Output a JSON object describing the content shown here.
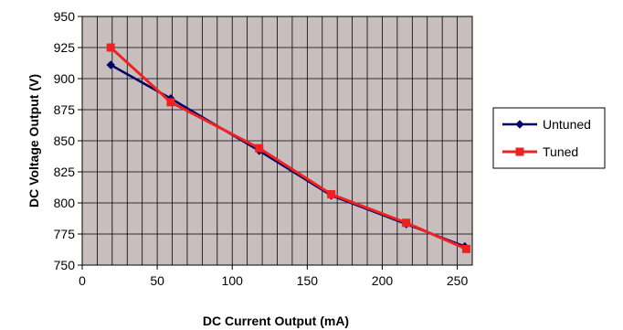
{
  "chart_data": {
    "type": "line",
    "xlabel": "DC Current Output (mA)",
    "ylabel": "DC Voltage Output (V)",
    "xlim": [
      0,
      260
    ],
    "ylim": [
      750,
      950
    ],
    "x_ticks": [
      0,
      50,
      100,
      150,
      200,
      250
    ],
    "y_ticks": [
      750,
      775,
      800,
      825,
      850,
      875,
      900,
      925,
      950
    ],
    "x_minor_step": 10,
    "grid": true,
    "plot_background": "#c8bebe",
    "grid_color": "#000000",
    "legend_position": "right",
    "series": [
      {
        "name": "Untuned",
        "color": "#000066",
        "marker": "diamond",
        "points": [
          {
            "x": 19,
            "y": 911
          },
          {
            "x": 59,
            "y": 884
          },
          {
            "x": 118,
            "y": 842
          },
          {
            "x": 166,
            "y": 806
          },
          {
            "x": 216,
            "y": 783
          },
          {
            "x": 255,
            "y": 765
          }
        ]
      },
      {
        "name": "Tuned",
        "color": "#ee2222",
        "marker": "square",
        "points": [
          {
            "x": 19,
            "y": 925
          },
          {
            "x": 59,
            "y": 881
          },
          {
            "x": 118,
            "y": 844
          },
          {
            "x": 166,
            "y": 807
          },
          {
            "x": 216,
            "y": 784
          },
          {
            "x": 256,
            "y": 763
          }
        ]
      }
    ]
  }
}
